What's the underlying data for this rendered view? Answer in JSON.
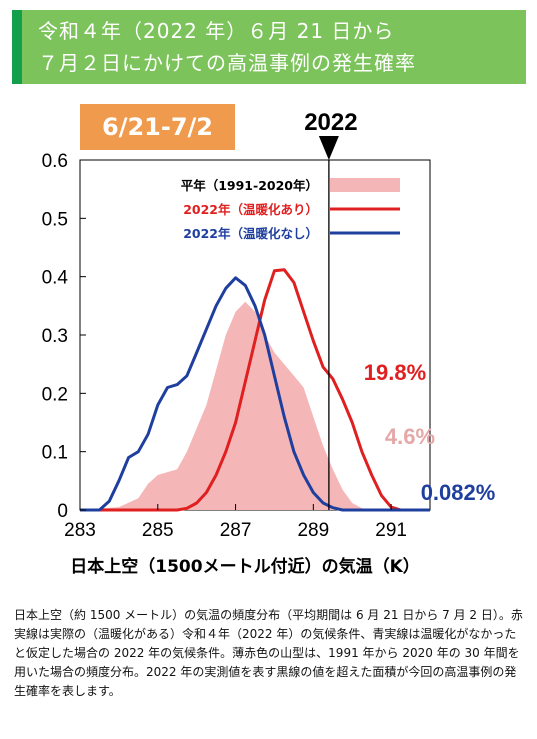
{
  "header": {
    "title_line1": "令和４年（2022 年）６月 21 日から",
    "title_line2": "７月２日にかけての高温事例の発生確率"
  },
  "range_label": "6/21-7/2",
  "marker_year": "2022",
  "colors": {
    "header_bg": "#7cc35c",
    "header_stripe": "#14a04a",
    "badge": "#ef9a4c",
    "normal": "#f4b6b6",
    "actual": "#e02020",
    "no_warming": "#1f3f9e",
    "pct_normal": "#e5a8a8",
    "marker": "#000000"
  },
  "caption": "日本上空（約 1500 メートル）の気温の頻度分布（平均期間は 6 月 21 日から 7 月 2 日）。赤実線は実際の（温暖化がある）令和４年（2022 年）の気候条件、青実線は温暖化がなかったと仮定した場合の 2022 年の気候条件。薄赤色の山型は、1991 年から 2020 年の 30 年間を用いた場合の頻度分布。2022 年の実測値を表す黒線の値を超えた面積が今回の高温事例の発生確率を表します。",
  "chart_data": {
    "type": "area",
    "xlabel": "日本上空（1500メートル付近）の気温（K）",
    "ylabel": "",
    "xlim": [
      283,
      292
    ],
    "ylim": [
      0,
      0.6
    ],
    "xticks": [
      "283",
      "285",
      "287",
      "289",
      "291"
    ],
    "xtick_values": [
      283,
      285,
      287,
      289,
      291
    ],
    "yticks": [
      "0",
      "0.1",
      "0.2",
      "0.3",
      "0.4",
      "0.5",
      "0.6"
    ],
    "ytick_values": [
      0,
      0.1,
      0.2,
      0.3,
      0.4,
      0.5,
      0.6
    ],
    "observed_2022": 289.4,
    "legend_position": "top-right",
    "series": [
      {
        "name": "平年（1991-2020年）",
        "style": "fill",
        "color": "#f4b6b6",
        "probability": "4.6%",
        "points": [
          [
            283,
            0
          ],
          [
            284,
            0.005
          ],
          [
            284.5,
            0.02
          ],
          [
            284.75,
            0.045
          ],
          [
            285,
            0.06
          ],
          [
            285.25,
            0.065
          ],
          [
            285.5,
            0.07
          ],
          [
            285.75,
            0.1
          ],
          [
            286,
            0.14
          ],
          [
            286.25,
            0.18
          ],
          [
            286.5,
            0.24
          ],
          [
            286.75,
            0.3
          ],
          [
            287,
            0.34
          ],
          [
            287.25,
            0.357
          ],
          [
            287.5,
            0.34
          ],
          [
            287.75,
            0.3
          ],
          [
            288,
            0.27
          ],
          [
            288.25,
            0.25
          ],
          [
            288.5,
            0.23
          ],
          [
            288.75,
            0.21
          ],
          [
            289,
            0.16
          ],
          [
            289.25,
            0.11
          ],
          [
            289.5,
            0.07
          ],
          [
            289.75,
            0.035
          ],
          [
            290,
            0.012
          ],
          [
            290.25,
            0.003
          ],
          [
            290.5,
            0
          ],
          [
            292,
            0
          ]
        ]
      },
      {
        "name": "2022年（温暖化あり）",
        "style": "line",
        "color": "#e02020",
        "probability": "19.8%",
        "points": [
          [
            283,
            0
          ],
          [
            285.5,
            0
          ],
          [
            285.75,
            0.003
          ],
          [
            286,
            0.012
          ],
          [
            286.25,
            0.03
          ],
          [
            286.5,
            0.06
          ],
          [
            286.75,
            0.1
          ],
          [
            287,
            0.15
          ],
          [
            287.25,
            0.22
          ],
          [
            287.5,
            0.29
          ],
          [
            287.75,
            0.36
          ],
          [
            288,
            0.41
          ],
          [
            288.25,
            0.412
          ],
          [
            288.5,
            0.39
          ],
          [
            288.75,
            0.34
          ],
          [
            289,
            0.29
          ],
          [
            289.25,
            0.245
          ],
          [
            289.5,
            0.225
          ],
          [
            289.75,
            0.19
          ],
          [
            290,
            0.15
          ],
          [
            290.25,
            0.1
          ],
          [
            290.5,
            0.06
          ],
          [
            290.75,
            0.025
          ],
          [
            291,
            0.005
          ],
          [
            291.25,
            0
          ],
          [
            292,
            0
          ]
        ]
      },
      {
        "name": "2022年（温暖化なし）",
        "style": "line",
        "color": "#1f3f9e",
        "probability": "0.082%",
        "points": [
          [
            283,
            0
          ],
          [
            283.5,
            0
          ],
          [
            283.75,
            0.015
          ],
          [
            284,
            0.05
          ],
          [
            284.25,
            0.09
          ],
          [
            284.5,
            0.1
          ],
          [
            284.75,
            0.13
          ],
          [
            285,
            0.18
          ],
          [
            285.25,
            0.21
          ],
          [
            285.5,
            0.215
          ],
          [
            285.75,
            0.23
          ],
          [
            286,
            0.27
          ],
          [
            286.25,
            0.31
          ],
          [
            286.5,
            0.35
          ],
          [
            286.75,
            0.38
          ],
          [
            287,
            0.398
          ],
          [
            287.25,
            0.385
          ],
          [
            287.5,
            0.35
          ],
          [
            287.75,
            0.3
          ],
          [
            288,
            0.23
          ],
          [
            288.25,
            0.16
          ],
          [
            288.5,
            0.1
          ],
          [
            288.75,
            0.06
          ],
          [
            289,
            0.03
          ],
          [
            289.25,
            0.012
          ],
          [
            289.5,
            0.004
          ],
          [
            289.75,
            0
          ],
          [
            292,
            0
          ]
        ]
      }
    ]
  }
}
